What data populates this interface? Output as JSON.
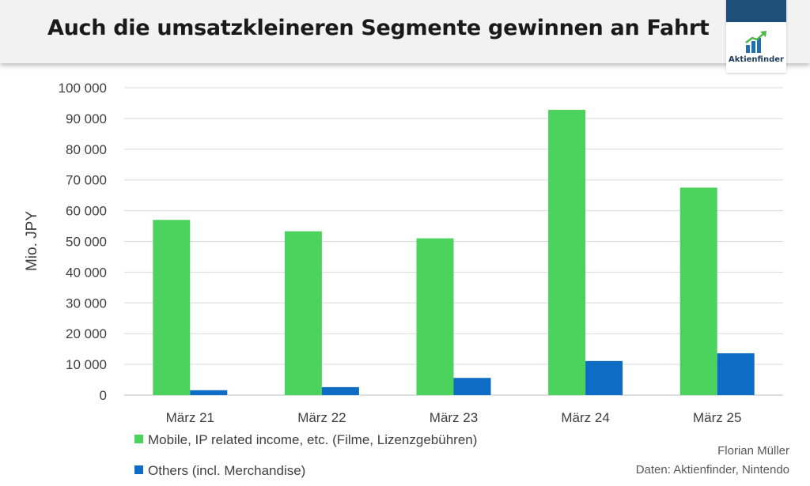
{
  "header": {
    "title": "Auch die umsatzkleineren Segmente gewinnen an Fahrt",
    "logo_text": "Aktienfinder"
  },
  "credit": {
    "author": "Florian Müller",
    "source": "Daten: Aktienfinder, Nintendo"
  },
  "colors": {
    "mobile": "#4cd35e",
    "others": "#0e6cc4",
    "logo_bar": "#1f4e79"
  },
  "chart_data": {
    "type": "bar",
    "title": "Auch die umsatzkleineren Segmente gewinnen an Fahrt",
    "ylabel": "Mio. JPY",
    "xlabel": "",
    "ylim": [
      0,
      100000
    ],
    "yticks": [
      0,
      10000,
      20000,
      30000,
      40000,
      50000,
      60000,
      70000,
      80000,
      90000,
      100000
    ],
    "ytick_labels": [
      "0",
      "10 000",
      "20 000",
      "30 000",
      "40 000",
      "50 000",
      "60 000",
      "70 000",
      "80 000",
      "90 000",
      "100 000"
    ],
    "categories": [
      "März 21",
      "März 22",
      "März 23",
      "März 24",
      "März 25"
    ],
    "series": [
      {
        "name": "Mobile, IP related income, etc. (Filme, Lizenzgebühren)",
        "values": [
          57000,
          53300,
          51000,
          92800,
          67500
        ]
      },
      {
        "name": "Others (incl. Merchandise)",
        "values": [
          1600,
          2600,
          5600,
          11100,
          13600
        ]
      }
    ],
    "grid": true,
    "legend_position": "bottom-left"
  }
}
